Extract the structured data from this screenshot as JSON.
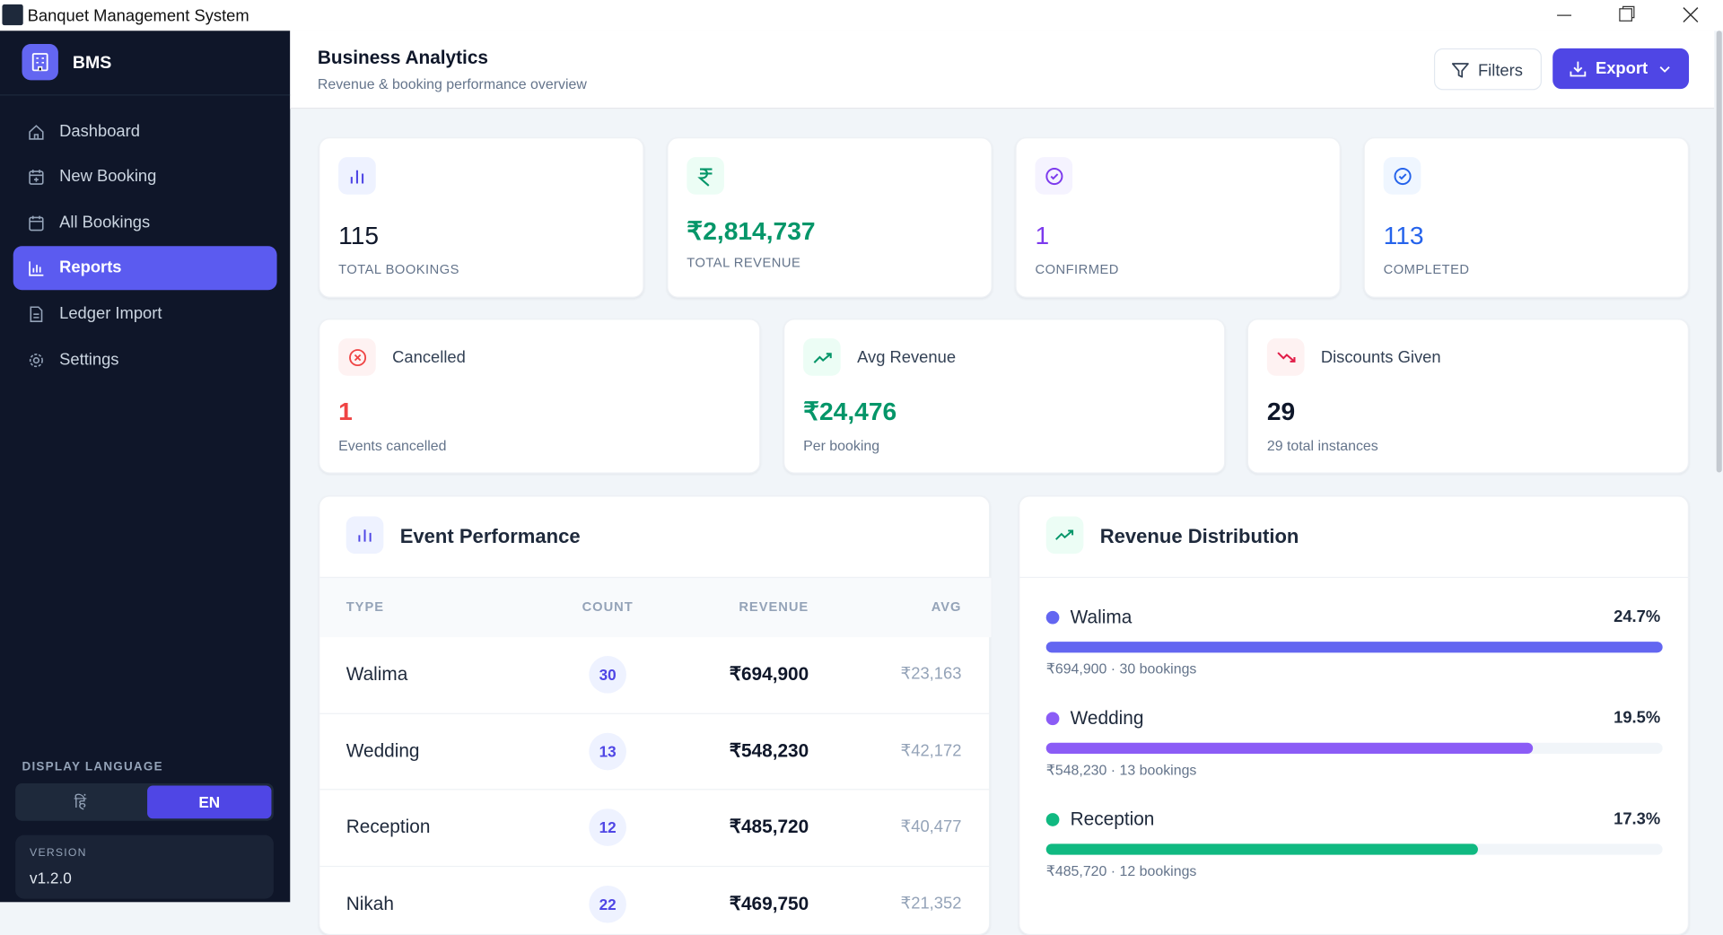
{
  "window": {
    "title": "Banquet Management System"
  },
  "sidebar": {
    "brand": "BMS",
    "nav": [
      "Dashboard",
      "New Booking",
      "All Bookings",
      "Reports",
      "Ledger Import",
      "Settings"
    ],
    "language_label": "DISPLAY LANGUAGE",
    "languages": [
      "हिं",
      "EN"
    ],
    "version_label": "VERSION",
    "version": "v1.2.0"
  },
  "header": {
    "title": "Business Analytics",
    "subtitle": "Revenue & booking performance overview",
    "buttons": [
      "Filters",
      "Export"
    ]
  },
  "stats": [
    {
      "value": "115",
      "label": "TOTAL BOOKINGS"
    },
    {
      "value": "₹2,814,737",
      "label": "TOTAL REVENUE"
    },
    {
      "value": "1",
      "label": "CONFIRMED"
    },
    {
      "value": "113",
      "label": "COMPLETED"
    }
  ],
  "summary": [
    {
      "title": "Cancelled",
      "value": "1",
      "note": "Events cancelled"
    },
    {
      "title": "Avg Revenue",
      "value": "₹24,476",
      "note": "Per booking"
    },
    {
      "title": "Discounts Given",
      "value": "29",
      "note": "29 total instances"
    }
  ],
  "event_performance": {
    "title": "Event Performance",
    "columns": [
      "TYPE",
      "COUNT",
      "REVENUE",
      "AVG"
    ],
    "rows": [
      [
        "Walima",
        "30",
        "₹694,900",
        "₹23,163"
      ],
      [
        "Wedding",
        "13",
        "₹548,230",
        "₹42,172"
      ],
      [
        "Reception",
        "12",
        "₹485,720",
        "₹40,477"
      ],
      [
        "Nikah",
        "22",
        "₹469,750",
        "₹21,352"
      ]
    ]
  },
  "revenue_distribution": {
    "title": "Revenue Distribution",
    "items": [
      {
        "name": "Walima",
        "share": {
          "value": 24.7,
          "label": "24.7%"
        },
        "detail": "₹694,900 · 30 bookings",
        "color": "#6366f1"
      },
      {
        "name": "Wedding",
        "share": {
          "value": 19.5,
          "label": "19.5%"
        },
        "detail": "₹548,230 · 13 bookings",
        "color": "#8b5cf6"
      },
      {
        "name": "Reception",
        "share": {
          "value": 17.3,
          "label": "17.3%"
        },
        "detail": "₹485,720 · 12 bookings",
        "color": "#10b981"
      }
    ]
  }
}
